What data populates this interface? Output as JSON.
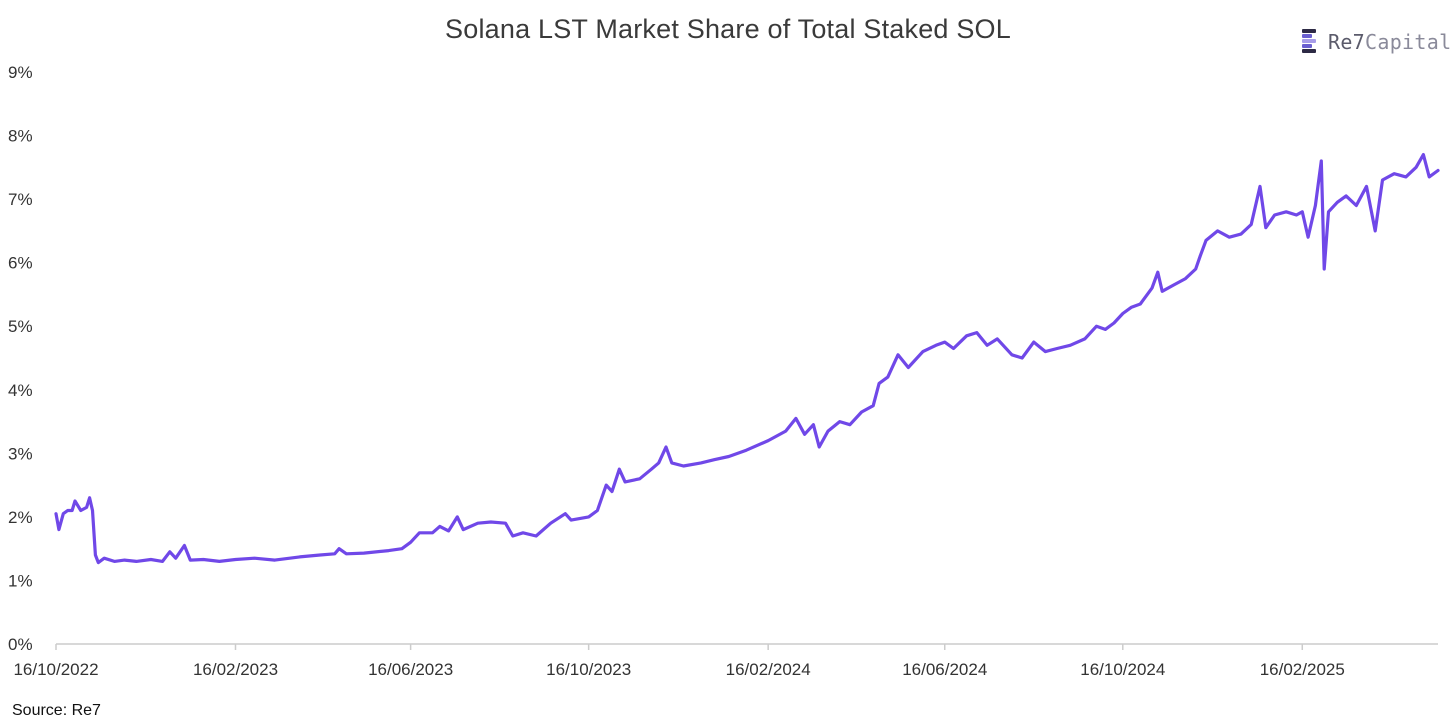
{
  "source_note": "Source: Re7",
  "brand": {
    "name_primary": "Re7",
    "name_secondary": "Capital"
  },
  "colors": {
    "line": "#7048e8",
    "axis": "#cccccc",
    "text": "#333333",
    "logo_bars": [
      "#2d2a45",
      "#6a5fd0",
      "#a79ce8",
      "#2d2a45",
      "#6a5fd0"
    ]
  },
  "chart_data": {
    "type": "line",
    "title": "Solana LST Market Share of Total Staked SOL",
    "xlabel": "",
    "ylabel": "",
    "grid": false,
    "legend": "none",
    "ylim": [
      0,
      9
    ],
    "y_ticks": [
      "0%",
      "1%",
      "2%",
      "3%",
      "4%",
      "5%",
      "6%",
      "7%",
      "8%",
      "9%"
    ],
    "x_ticks": [
      "16/10/2022",
      "16/02/2023",
      "16/06/2023",
      "16/10/2023",
      "16/02/2024",
      "16/06/2024",
      "16/10/2024",
      "16/02/2025"
    ],
    "x_range": [
      "2022-10-16",
      "2025-05-20"
    ],
    "series": [
      {
        "points": [
          [
            "2022-10-16",
            2.05
          ],
          [
            "2022-10-18",
            1.8
          ],
          [
            "2022-10-21",
            2.05
          ],
          [
            "2022-10-24",
            2.1
          ],
          [
            "2022-10-27",
            2.1
          ],
          [
            "2022-10-29",
            2.25
          ],
          [
            "2022-11-02",
            2.1
          ],
          [
            "2022-11-06",
            2.15
          ],
          [
            "2022-11-08",
            2.3
          ],
          [
            "2022-11-10",
            2.1
          ],
          [
            "2022-11-12",
            1.4
          ],
          [
            "2022-11-14",
            1.28
          ],
          [
            "2022-11-18",
            1.35
          ],
          [
            "2022-11-25",
            1.3
          ],
          [
            "2022-12-02",
            1.32
          ],
          [
            "2022-12-10",
            1.3
          ],
          [
            "2022-12-20",
            1.33
          ],
          [
            "2022-12-28",
            1.3
          ],
          [
            "2023-01-02",
            1.45
          ],
          [
            "2023-01-06",
            1.35
          ],
          [
            "2023-01-12",
            1.55
          ],
          [
            "2023-01-16",
            1.32
          ],
          [
            "2023-01-25",
            1.33
          ],
          [
            "2023-02-05",
            1.3
          ],
          [
            "2023-02-16",
            1.33
          ],
          [
            "2023-03-01",
            1.35
          ],
          [
            "2023-03-15",
            1.32
          ],
          [
            "2023-04-01",
            1.37
          ],
          [
            "2023-04-15",
            1.4
          ],
          [
            "2023-04-25",
            1.42
          ],
          [
            "2023-04-28",
            1.5
          ],
          [
            "2023-05-03",
            1.42
          ],
          [
            "2023-05-15",
            1.43
          ],
          [
            "2023-06-01",
            1.47
          ],
          [
            "2023-06-10",
            1.5
          ],
          [
            "2023-06-16",
            1.6
          ],
          [
            "2023-06-22",
            1.75
          ],
          [
            "2023-07-01",
            1.75
          ],
          [
            "2023-07-06",
            1.85
          ],
          [
            "2023-07-12",
            1.78
          ],
          [
            "2023-07-18",
            2.0
          ],
          [
            "2023-07-22",
            1.8
          ],
          [
            "2023-08-01",
            1.9
          ],
          [
            "2023-08-10",
            1.92
          ],
          [
            "2023-08-20",
            1.9
          ],
          [
            "2023-08-25",
            1.7
          ],
          [
            "2023-09-01",
            1.75
          ],
          [
            "2023-09-10",
            1.7
          ],
          [
            "2023-09-20",
            1.9
          ],
          [
            "2023-09-30",
            2.05
          ],
          [
            "2023-10-04",
            1.95
          ],
          [
            "2023-10-16",
            2.0
          ],
          [
            "2023-10-22",
            2.1
          ],
          [
            "2023-10-28",
            2.5
          ],
          [
            "2023-11-01",
            2.4
          ],
          [
            "2023-11-06",
            2.75
          ],
          [
            "2023-11-10",
            2.55
          ],
          [
            "2023-11-20",
            2.6
          ],
          [
            "2023-11-28",
            2.75
          ],
          [
            "2023-12-03",
            2.85
          ],
          [
            "2023-12-08",
            3.1
          ],
          [
            "2023-12-12",
            2.85
          ],
          [
            "2023-12-20",
            2.8
          ],
          [
            "2024-01-01",
            2.85
          ],
          [
            "2024-01-10",
            2.9
          ],
          [
            "2024-01-20",
            2.95
          ],
          [
            "2024-02-01",
            3.05
          ],
          [
            "2024-02-16",
            3.2
          ],
          [
            "2024-02-28",
            3.35
          ],
          [
            "2024-03-06",
            3.55
          ],
          [
            "2024-03-12",
            3.3
          ],
          [
            "2024-03-18",
            3.45
          ],
          [
            "2024-03-22",
            3.1
          ],
          [
            "2024-03-28",
            3.35
          ],
          [
            "2024-04-05",
            3.5
          ],
          [
            "2024-04-12",
            3.45
          ],
          [
            "2024-04-20",
            3.65
          ],
          [
            "2024-04-28",
            3.75
          ],
          [
            "2024-05-02",
            4.1
          ],
          [
            "2024-05-08",
            4.2
          ],
          [
            "2024-05-15",
            4.55
          ],
          [
            "2024-05-22",
            4.35
          ],
          [
            "2024-06-01",
            4.6
          ],
          [
            "2024-06-10",
            4.7
          ],
          [
            "2024-06-16",
            4.75
          ],
          [
            "2024-06-22",
            4.65
          ],
          [
            "2024-07-01",
            4.85
          ],
          [
            "2024-07-08",
            4.9
          ],
          [
            "2024-07-15",
            4.7
          ],
          [
            "2024-07-22",
            4.8
          ],
          [
            "2024-08-01",
            4.55
          ],
          [
            "2024-08-08",
            4.5
          ],
          [
            "2024-08-16",
            4.75
          ],
          [
            "2024-08-24",
            4.6
          ],
          [
            "2024-09-01",
            4.65
          ],
          [
            "2024-09-10",
            4.7
          ],
          [
            "2024-09-20",
            4.8
          ],
          [
            "2024-09-28",
            5.0
          ],
          [
            "2024-10-04",
            4.95
          ],
          [
            "2024-10-10",
            5.05
          ],
          [
            "2024-10-16",
            5.2
          ],
          [
            "2024-10-22",
            5.3
          ],
          [
            "2024-10-28",
            5.35
          ],
          [
            "2024-11-05",
            5.6
          ],
          [
            "2024-11-09",
            5.85
          ],
          [
            "2024-11-12",
            5.55
          ],
          [
            "2024-11-20",
            5.65
          ],
          [
            "2024-11-28",
            5.75
          ],
          [
            "2024-12-05",
            5.9
          ],
          [
            "2024-12-08",
            6.1
          ],
          [
            "2024-12-12",
            6.35
          ],
          [
            "2024-12-20",
            6.5
          ],
          [
            "2024-12-28",
            6.4
          ],
          [
            "2025-01-05",
            6.45
          ],
          [
            "2025-01-12",
            6.6
          ],
          [
            "2025-01-18",
            7.2
          ],
          [
            "2025-01-22",
            6.55
          ],
          [
            "2025-01-28",
            6.75
          ],
          [
            "2025-02-05",
            6.8
          ],
          [
            "2025-02-12",
            6.75
          ],
          [
            "2025-02-16",
            6.8
          ],
          [
            "2025-02-20",
            6.4
          ],
          [
            "2025-02-25",
            6.9
          ],
          [
            "2025-03-01",
            7.6
          ],
          [
            "2025-03-03",
            5.9
          ],
          [
            "2025-03-06",
            6.8
          ],
          [
            "2025-03-12",
            6.95
          ],
          [
            "2025-03-18",
            7.05
          ],
          [
            "2025-03-25",
            6.9
          ],
          [
            "2025-04-01",
            7.2
          ],
          [
            "2025-04-07",
            6.5
          ],
          [
            "2025-04-12",
            7.3
          ],
          [
            "2025-04-20",
            7.4
          ],
          [
            "2025-04-28",
            7.35
          ],
          [
            "2025-05-05",
            7.5
          ],
          [
            "2025-05-10",
            7.7
          ],
          [
            "2025-05-14",
            7.35
          ],
          [
            "2025-05-20",
            7.45
          ]
        ]
      }
    ]
  }
}
